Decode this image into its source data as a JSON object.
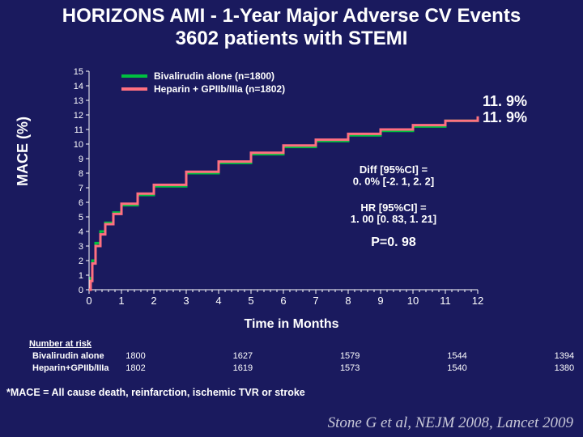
{
  "title_line1": "HORIZONS AMI - 1-Year Major Adverse CV Events",
  "title_line2": "3602 patients with STEMI",
  "title_fontsize": 24,
  "chart": {
    "type": "line",
    "background_color": "#1a1a5e",
    "xlim": [
      0,
      12
    ],
    "ylim": [
      0,
      15
    ],
    "x_ticks": [
      0,
      1,
      2,
      3,
      4,
      5,
      6,
      7,
      8,
      9,
      10,
      11,
      12
    ],
    "y_ticks": [
      0,
      1,
      2,
      3,
      4,
      5,
      6,
      7,
      8,
      9,
      10,
      11,
      12,
      13,
      14,
      15
    ],
    "ylabel": "MACE (%)",
    "xlabel": "Time in Months",
    "series": [
      {
        "name": "Bivalirudin alone (n=1800)",
        "color": "#00c040",
        "width": 3,
        "points": [
          [
            0,
            0
          ],
          [
            0.05,
            0.8
          ],
          [
            0.1,
            2.0
          ],
          [
            0.2,
            3.2
          ],
          [
            0.35,
            4.0
          ],
          [
            0.5,
            4.6
          ],
          [
            0.75,
            5.3
          ],
          [
            1,
            5.8
          ],
          [
            1.5,
            6.5
          ],
          [
            2,
            7.1
          ],
          [
            3,
            8.0
          ],
          [
            4,
            8.7
          ],
          [
            5,
            9.3
          ],
          [
            6,
            9.8
          ],
          [
            7,
            10.2
          ],
          [
            8,
            10.6
          ],
          [
            9,
            10.9
          ],
          [
            10,
            11.2
          ],
          [
            11,
            11.6
          ],
          [
            12,
            11.9
          ]
        ]
      },
      {
        "name": "Heparin + GPIIb/IIIa (n=1802)",
        "color": "#ff7080",
        "width": 3,
        "points": [
          [
            0,
            0
          ],
          [
            0.05,
            0.6
          ],
          [
            0.1,
            1.8
          ],
          [
            0.2,
            3.0
          ],
          [
            0.35,
            3.8
          ],
          [
            0.5,
            4.5
          ],
          [
            0.75,
            5.2
          ],
          [
            1,
            5.9
          ],
          [
            1.5,
            6.6
          ],
          [
            2,
            7.2
          ],
          [
            3,
            8.1
          ],
          [
            4,
            8.8
          ],
          [
            5,
            9.4
          ],
          [
            6,
            9.9
          ],
          [
            7,
            10.3
          ],
          [
            8,
            10.7
          ],
          [
            9,
            11.0
          ],
          [
            10,
            11.3
          ],
          [
            11,
            11.6
          ],
          [
            12,
            11.9
          ]
        ]
      }
    ],
    "end_labels": [
      "11. 9%",
      "11. 9%"
    ],
    "stats": {
      "diff_l1": "Diff [95%CI] =",
      "diff_l2": "0. 0% [-2. 1, 2. 2]",
      "hr_l1": "HR [95%CI] =",
      "hr_l2": "1. 00 [0. 83, 1. 21]",
      "pval": "P=0. 98"
    }
  },
  "risk": {
    "header": "Number at risk",
    "rows": [
      {
        "label": "Bivalirudin alone",
        "values": [
          "1800",
          "",
          "",
          "1627",
          "",
          "",
          "1579",
          "",
          "",
          "1544",
          "",
          "",
          "1394"
        ]
      },
      {
        "label": "Heparin+GPIIb/IIIa",
        "values": [
          "1802",
          "",
          "",
          "1619",
          "",
          "",
          "1573",
          "",
          "",
          "1540",
          "",
          "",
          "1380"
        ]
      }
    ]
  },
  "footnote": "*MACE = All cause death, reinfarction, ischemic TVR or stroke",
  "citation": "Stone G et al, NEJM 2008, Lancet 2009"
}
